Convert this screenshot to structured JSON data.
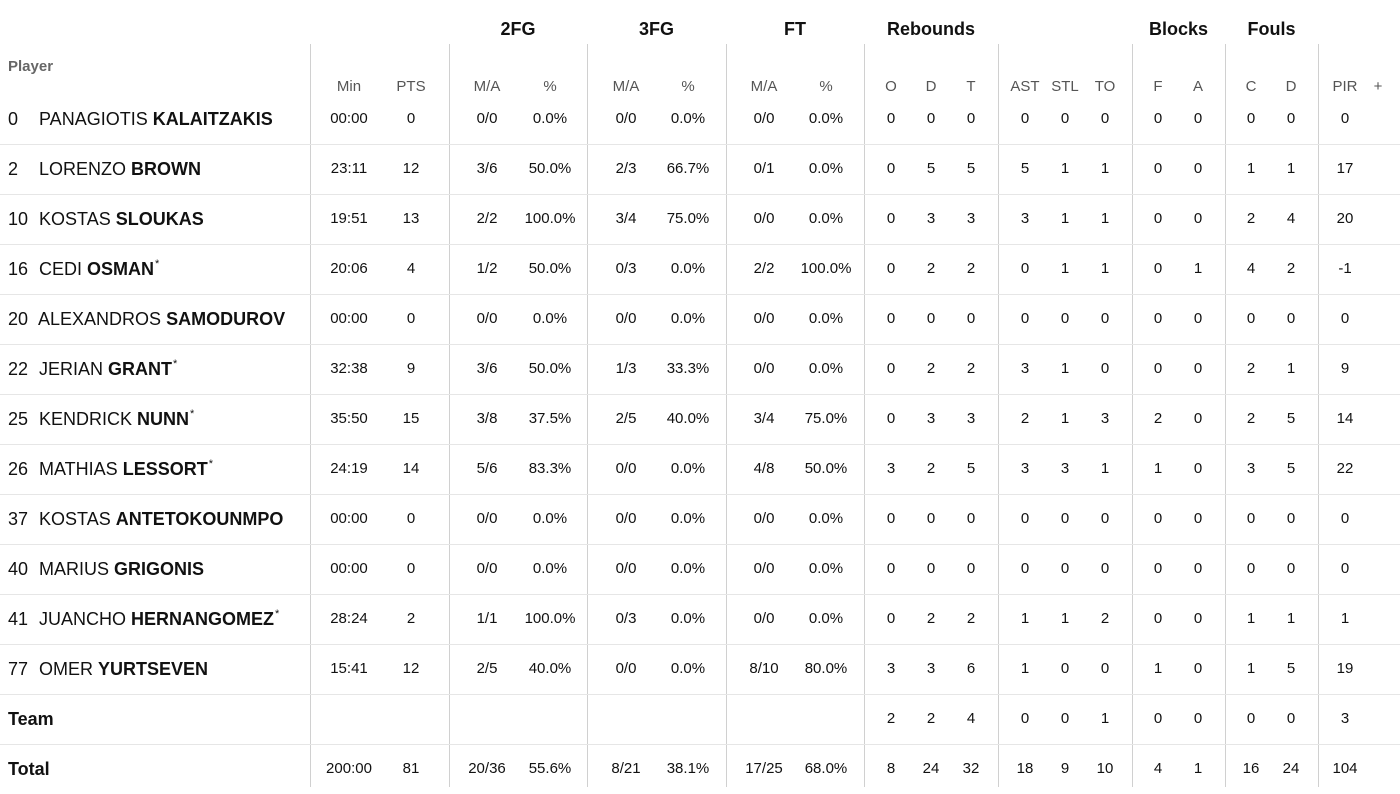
{
  "groups": {
    "fg2": "2FG",
    "fg3": "3FG",
    "ft": "FT",
    "rebounds": "Rebounds",
    "blocks": "Blocks",
    "fouls": "Fouls"
  },
  "headers": {
    "player": "Player",
    "min": "Min",
    "pts": "PTS",
    "fg2_ma": "M/A",
    "fg2_pct": "%",
    "fg3_ma": "M/A",
    "fg3_pct": "%",
    "ft_ma": "M/A",
    "ft_pct": "%",
    "reb_o": "O",
    "reb_d": "D",
    "reb_t": "T",
    "ast": "AST",
    "stl": "STL",
    "to": "TO",
    "blk_f": "F",
    "blk_a": "A",
    "foul_c": "C",
    "foul_d": "D",
    "pir": "PIR",
    "plus": "+"
  },
  "rows": [
    {
      "num": "0",
      "first": "PANAGIOTIS",
      "last": "KALAITZAKIS",
      "star": "",
      "min": "00:00",
      "pts": "0",
      "fg2_ma": "0/0",
      "fg2_pct": "0.0%",
      "fg3_ma": "0/0",
      "fg3_pct": "0.0%",
      "ft_ma": "0/0",
      "ft_pct": "0.0%",
      "reb_o": "0",
      "reb_d": "0",
      "reb_t": "0",
      "ast": "0",
      "stl": "0",
      "to": "0",
      "blk_f": "0",
      "blk_a": "0",
      "foul_c": "0",
      "foul_d": "0",
      "pir": "0"
    },
    {
      "num": "2",
      "first": "LORENZO",
      "last": "BROWN",
      "star": "",
      "min": "23:11",
      "pts": "12",
      "fg2_ma": "3/6",
      "fg2_pct": "50.0%",
      "fg3_ma": "2/3",
      "fg3_pct": "66.7%",
      "ft_ma": "0/1",
      "ft_pct": "0.0%",
      "reb_o": "0",
      "reb_d": "5",
      "reb_t": "5",
      "ast": "5",
      "stl": "1",
      "to": "1",
      "blk_f": "0",
      "blk_a": "0",
      "foul_c": "1",
      "foul_d": "1",
      "pir": "17"
    },
    {
      "num": "10",
      "first": "KOSTAS",
      "last": "SLOUKAS",
      "star": "",
      "min": "19:51",
      "pts": "13",
      "fg2_ma": "2/2",
      "fg2_pct": "100.0%",
      "fg3_ma": "3/4",
      "fg3_pct": "75.0%",
      "ft_ma": "0/0",
      "ft_pct": "0.0%",
      "reb_o": "0",
      "reb_d": "3",
      "reb_t": "3",
      "ast": "3",
      "stl": "1",
      "to": "1",
      "blk_f": "0",
      "blk_a": "0",
      "foul_c": "2",
      "foul_d": "4",
      "pir": "20"
    },
    {
      "num": "16",
      "first": "CEDI",
      "last": "OSMAN",
      "star": "*",
      "min": "20:06",
      "pts": "4",
      "fg2_ma": "1/2",
      "fg2_pct": "50.0%",
      "fg3_ma": "0/3",
      "fg3_pct": "0.0%",
      "ft_ma": "2/2",
      "ft_pct": "100.0%",
      "reb_o": "0",
      "reb_d": "2",
      "reb_t": "2",
      "ast": "0",
      "stl": "1",
      "to": "1",
      "blk_f": "0",
      "blk_a": "1",
      "foul_c": "4",
      "foul_d": "2",
      "pir": "-1"
    },
    {
      "num": "20",
      "first": "ALEXANDROS",
      "last": "SAMODUROV",
      "star": "",
      "min": "00:00",
      "pts": "0",
      "fg2_ma": "0/0",
      "fg2_pct": "0.0%",
      "fg3_ma": "0/0",
      "fg3_pct": "0.0%",
      "ft_ma": "0/0",
      "ft_pct": "0.0%",
      "reb_o": "0",
      "reb_d": "0",
      "reb_t": "0",
      "ast": "0",
      "stl": "0",
      "to": "0",
      "blk_f": "0",
      "blk_a": "0",
      "foul_c": "0",
      "foul_d": "0",
      "pir": "0"
    },
    {
      "num": "22",
      "first": "JERIAN",
      "last": "GRANT",
      "star": "*",
      "min": "32:38",
      "pts": "9",
      "fg2_ma": "3/6",
      "fg2_pct": "50.0%",
      "fg3_ma": "1/3",
      "fg3_pct": "33.3%",
      "ft_ma": "0/0",
      "ft_pct": "0.0%",
      "reb_o": "0",
      "reb_d": "2",
      "reb_t": "2",
      "ast": "3",
      "stl": "1",
      "to": "0",
      "blk_f": "0",
      "blk_a": "0",
      "foul_c": "2",
      "foul_d": "1",
      "pir": "9"
    },
    {
      "num": "25",
      "first": "KENDRICK",
      "last": "NUNN",
      "star": "*",
      "min": "35:50",
      "pts": "15",
      "fg2_ma": "3/8",
      "fg2_pct": "37.5%",
      "fg3_ma": "2/5",
      "fg3_pct": "40.0%",
      "ft_ma": "3/4",
      "ft_pct": "75.0%",
      "reb_o": "0",
      "reb_d": "3",
      "reb_t": "3",
      "ast": "2",
      "stl": "1",
      "to": "3",
      "blk_f": "2",
      "blk_a": "0",
      "foul_c": "2",
      "foul_d": "5",
      "pir": "14"
    },
    {
      "num": "26",
      "first": "MATHIAS",
      "last": "LESSORT",
      "star": "*",
      "min": "24:19",
      "pts": "14",
      "fg2_ma": "5/6",
      "fg2_pct": "83.3%",
      "fg3_ma": "0/0",
      "fg3_pct": "0.0%",
      "ft_ma": "4/8",
      "ft_pct": "50.0%",
      "reb_o": "3",
      "reb_d": "2",
      "reb_t": "5",
      "ast": "3",
      "stl": "3",
      "to": "1",
      "blk_f": "1",
      "blk_a": "0",
      "foul_c": "3",
      "foul_d": "5",
      "pir": "22"
    },
    {
      "num": "37",
      "first": "KOSTAS",
      "last": "ANTETOKOUNMPO",
      "star": "",
      "min": "00:00",
      "pts": "0",
      "fg2_ma": "0/0",
      "fg2_pct": "0.0%",
      "fg3_ma": "0/0",
      "fg3_pct": "0.0%",
      "ft_ma": "0/0",
      "ft_pct": "0.0%",
      "reb_o": "0",
      "reb_d": "0",
      "reb_t": "0",
      "ast": "0",
      "stl": "0",
      "to": "0",
      "blk_f": "0",
      "blk_a": "0",
      "foul_c": "0",
      "foul_d": "0",
      "pir": "0"
    },
    {
      "num": "40",
      "first": "MARIUS",
      "last": "GRIGONIS",
      "star": "",
      "min": "00:00",
      "pts": "0",
      "fg2_ma": "0/0",
      "fg2_pct": "0.0%",
      "fg3_ma": "0/0",
      "fg3_pct": "0.0%",
      "ft_ma": "0/0",
      "ft_pct": "0.0%",
      "reb_o": "0",
      "reb_d": "0",
      "reb_t": "0",
      "ast": "0",
      "stl": "0",
      "to": "0",
      "blk_f": "0",
      "blk_a": "0",
      "foul_c": "0",
      "foul_d": "0",
      "pir": "0"
    },
    {
      "num": "41",
      "first": "JUANCHO",
      "last": "HERNANGOMEZ",
      "star": "*",
      "min": "28:24",
      "pts": "2",
      "fg2_ma": "1/1",
      "fg2_pct": "100.0%",
      "fg3_ma": "0/3",
      "fg3_pct": "0.0%",
      "ft_ma": "0/0",
      "ft_pct": "0.0%",
      "reb_o": "0",
      "reb_d": "2",
      "reb_t": "2",
      "ast": "1",
      "stl": "1",
      "to": "2",
      "blk_f": "0",
      "blk_a": "0",
      "foul_c": "1",
      "foul_d": "1",
      "pir": "1"
    },
    {
      "num": "77",
      "first": "OMER",
      "last": "YURTSEVEN",
      "star": "",
      "min": "15:41",
      "pts": "12",
      "fg2_ma": "2/5",
      "fg2_pct": "40.0%",
      "fg3_ma": "0/0",
      "fg3_pct": "0.0%",
      "ft_ma": "8/10",
      "ft_pct": "80.0%",
      "reb_o": "3",
      "reb_d": "3",
      "reb_t": "6",
      "ast": "1",
      "stl": "0",
      "to": "0",
      "blk_f": "1",
      "blk_a": "0",
      "foul_c": "1",
      "foul_d": "5",
      "pir": "19"
    }
  ],
  "team": {
    "label": "Team",
    "min": "",
    "pts": "",
    "fg2_ma": "",
    "fg2_pct": "",
    "fg3_ma": "",
    "fg3_pct": "",
    "ft_ma": "",
    "ft_pct": "",
    "reb_o": "2",
    "reb_d": "2",
    "reb_t": "4",
    "ast": "0",
    "stl": "0",
    "to": "1",
    "blk_f": "0",
    "blk_a": "0",
    "foul_c": "0",
    "foul_d": "0",
    "pir": "3"
  },
  "total": {
    "label": "Total",
    "min": "200:00",
    "pts": "81",
    "fg2_ma": "20/36",
    "fg2_pct": "55.6%",
    "fg3_ma": "8/21",
    "fg3_pct": "38.1%",
    "ft_ma": "17/25",
    "ft_pct": "68.0%",
    "reb_o": "8",
    "reb_d": "24",
    "reb_t": "32",
    "ast": "18",
    "stl": "9",
    "to": "10",
    "blk_f": "4",
    "blk_a": "1",
    "foul_c": "16",
    "foul_d": "24",
    "pir": "104"
  }
}
